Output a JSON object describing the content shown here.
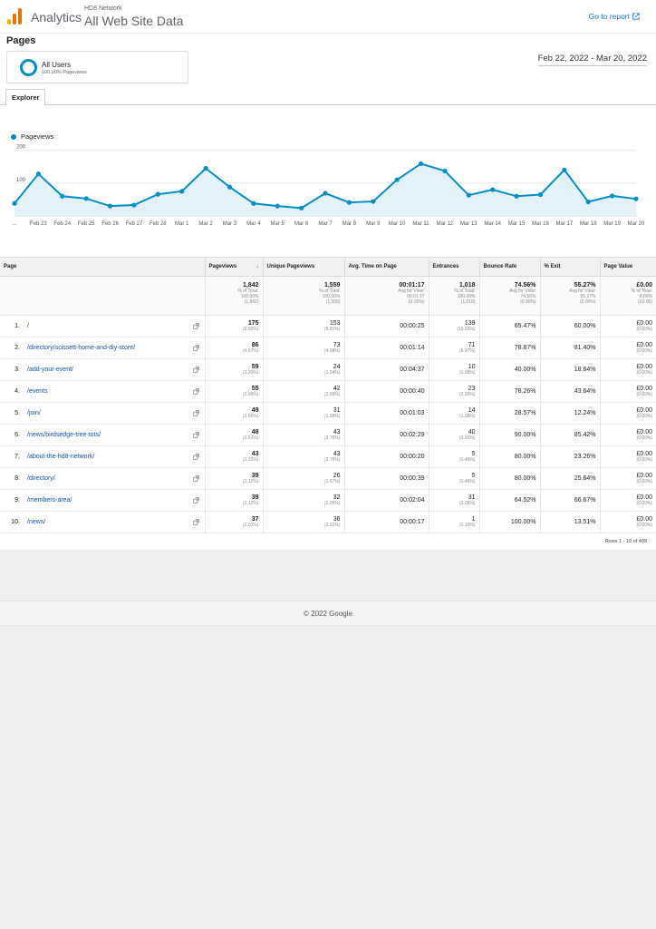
{
  "header": {
    "app_name": "Analytics",
    "account": "HD8 Network",
    "property": "All Web Site Data",
    "goto_report": "Go to report",
    "logo_colors": [
      "#f9ab00",
      "#e37400",
      "#e37400"
    ]
  },
  "page_title": "Pages",
  "segment": {
    "name": "All Users",
    "sub": "100.00% Pageviews",
    "color": "#058dc7"
  },
  "date_range": "Feb 22, 2022 - Mar 20, 2022",
  "tabs": [
    {
      "label": "Explorer"
    }
  ],
  "chart_data": {
    "type": "area",
    "series": [
      {
        "name": "Pageviews",
        "values": [
          38,
          128,
          60,
          53,
          30,
          33,
          66,
          75,
          145,
          88,
          38,
          30,
          24,
          69,
          41,
          44,
          110,
          159,
          137,
          63,
          80,
          60,
          65,
          140,
          43,
          61,
          52
        ]
      }
    ],
    "x": [
      "...",
      "Feb 23",
      "Feb 24",
      "Feb 25",
      "Feb 26",
      "Feb 27",
      "Feb 28",
      "Mar 1",
      "Mar 2",
      "Mar 3",
      "Mar 4",
      "Mar 5",
      "Mar 6",
      "Mar 7",
      "Mar 8",
      "Mar 9",
      "Mar 10",
      "Mar 11",
      "Mar 12",
      "Mar 13",
      "Mar 14",
      "Mar 15",
      "Mar 16",
      "Mar 17",
      "Mar 18",
      "Mar 19",
      "Mar 20"
    ],
    "yticks": [
      100,
      200
    ],
    "ylim": [
      0,
      210
    ],
    "color": "#058dc7",
    "fill": "#e3f1f9",
    "grid": true,
    "legend": "top-left"
  },
  "table": {
    "columns": [
      "Page",
      "Pageviews",
      "Unique Pageviews",
      "Avg. Time on Page",
      "Entrances",
      "Bounce Rate",
      "% Exit",
      "Page Value"
    ],
    "totals": [
      {
        "value": "1,842",
        "l1": "% of Total:",
        "l2": "100.00%",
        "l3": "(1,842)"
      },
      {
        "value": "1,559",
        "l1": "% of Total:",
        "l2": "100.00%",
        "l3": "(1,559)"
      },
      {
        "value": "00:01:17",
        "l1": "Avg for View:",
        "l2": "00:01:17",
        "l3": "(0.00%)"
      },
      {
        "value": "1,018",
        "l1": "% of Total:",
        "l2": "100.00%",
        "l3": "(1,018)"
      },
      {
        "value": "74.56%",
        "l1": "Avg for View:",
        "l2": "74.56%",
        "l3": "(0.00%)"
      },
      {
        "value": "55.27%",
        "l1": "Avg for View:",
        "l2": "55.27%",
        "l3": "(0.00%)"
      },
      {
        "value": "£0.00",
        "l1": "% of Total:",
        "l2": "0.00%",
        "l3": "(£0.00)"
      }
    ],
    "rows": [
      {
        "idx": "1.",
        "page": "/",
        "pv": "175",
        "pvp": "(9.50%)",
        "upv": "153",
        "upvp": "(9.81%)",
        "time": "00:00:25",
        "ent": "139",
        "entp": "(13.65%)",
        "bounce": "65.47%",
        "exit": "60.00%",
        "val": "£0.00",
        "valp": "(0.00%)"
      },
      {
        "idx": "2.",
        "page": "/directory/scissett-home-and-diy-store/",
        "pv": "86",
        "pvp": "(4.67%)",
        "upv": "73",
        "upvp": "(4.68%)",
        "time": "00:01:14",
        "ent": "71",
        "entp": "(6.97%)",
        "bounce": "78.87%",
        "exit": "81.40%",
        "val": "£0.00",
        "valp": "(0.00%)"
      },
      {
        "idx": "3.",
        "page": "/add-your-event/",
        "pv": "59",
        "pvp": "(3.20%)",
        "upv": "24",
        "upvp": "(1.54%)",
        "time": "00:04:37",
        "ent": "10",
        "entp": "(0.98%)",
        "bounce": "40.00%",
        "exit": "18.64%",
        "val": "£0.00",
        "valp": "(0.00%)"
      },
      {
        "idx": "4.",
        "page": "/events",
        "pv": "55",
        "pvp": "(2.99%)",
        "upv": "42",
        "upvp": "(2.69%)",
        "time": "00:00:40",
        "ent": "23",
        "entp": "(2.26%)",
        "bounce": "78.26%",
        "exit": "43.64%",
        "val": "£0.00",
        "valp": "(0.00%)"
      },
      {
        "idx": "5.",
        "page": "/join/",
        "pv": "49",
        "pvp": "(2.66%)",
        "upv": "31",
        "upvp": "(1.99%)",
        "time": "00:01:03",
        "ent": "14",
        "entp": "(1.38%)",
        "bounce": "28.57%",
        "exit": "12.24%",
        "val": "£0.00",
        "valp": "(0.00%)"
      },
      {
        "idx": "6.",
        "page": "/news/birdsedge-tree-tots/",
        "pv": "48",
        "pvp": "(2.61%)",
        "upv": "43",
        "upvp": "(2.76%)",
        "time": "00:02:29",
        "ent": "40",
        "entp": "(3.93%)",
        "bounce": "90.00%",
        "exit": "85.42%",
        "val": "£0.00",
        "valp": "(0.00%)"
      },
      {
        "idx": "7.",
        "page": "/about-the-hd8-network/",
        "pv": "43",
        "pvp": "(2.33%)",
        "upv": "43",
        "upvp": "(2.76%)",
        "time": "00:00:20",
        "ent": "5",
        "entp": "(0.49%)",
        "bounce": "80.00%",
        "exit": "23.26%",
        "val": "£0.00",
        "valp": "(0.00%)"
      },
      {
        "idx": "8.",
        "page": "/directory/",
        "pv": "39",
        "pvp": "(2.12%)",
        "upv": "26",
        "upvp": "(1.67%)",
        "time": "00:00:39",
        "ent": "5",
        "entp": "(0.49%)",
        "bounce": "80.00%",
        "exit": "25.64%",
        "val": "£0.00",
        "valp": "(0.00%)"
      },
      {
        "idx": "9.",
        "page": "/members-area/",
        "pv": "39",
        "pvp": "(2.12%)",
        "upv": "32",
        "upvp": "(2.05%)",
        "time": "00:02:04",
        "ent": "31",
        "entp": "(3.05%)",
        "bounce": "64.52%",
        "exit": "66.67%",
        "val": "£0.00",
        "valp": "(0.00%)"
      },
      {
        "idx": "10.",
        "page": "/news/",
        "pv": "37",
        "pvp": "(2.01%)",
        "upv": "36",
        "upvp": "(2.31%)",
        "time": "00:00:17",
        "ent": "1",
        "entp": "(0.10%)",
        "bounce": "100.00%",
        "exit": "13.51%",
        "val": "£0.00",
        "valp": "(0.00%)"
      }
    ],
    "rows_count": "Rows 1 - 10 of 499"
  },
  "footer": "© 2022 Google"
}
